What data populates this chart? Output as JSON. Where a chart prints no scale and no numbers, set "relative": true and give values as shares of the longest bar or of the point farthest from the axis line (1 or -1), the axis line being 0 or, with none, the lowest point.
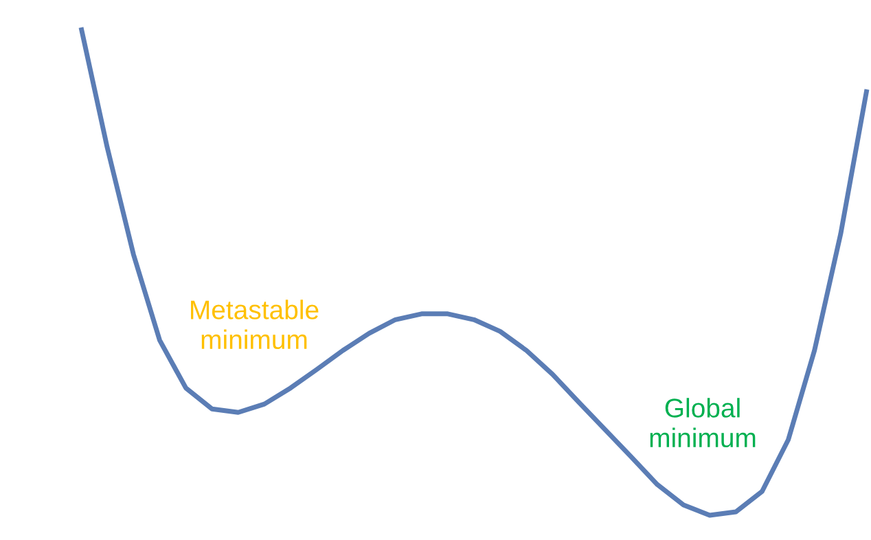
{
  "chart_data": {
    "type": "line",
    "relative": true,
    "categories": [
      null,
      null,
      null,
      null,
      null,
      null,
      null,
      null,
      null,
      null,
      null,
      null,
      null,
      null,
      null,
      null,
      null,
      null,
      null,
      null,
      null,
      null,
      null,
      null,
      null,
      null,
      null,
      null,
      null,
      null,
      null
    ],
    "series": [
      {
        "color": "#5b7db5",
        "values": [
          1.0,
          0.754,
          0.535,
          0.359,
          0.261,
          0.218,
          0.211,
          0.228,
          0.261,
          0.299,
          0.338,
          0.373,
          0.401,
          0.413,
          0.413,
          0.401,
          0.377,
          0.338,
          0.289,
          0.232,
          0.176,
          0.12,
          0.063,
          0.021,
          0.0,
          0.007,
          0.049,
          0.155,
          0.338,
          0.577,
          0.873
        ]
      }
    ],
    "annotations": [
      "Metastable\nminimum",
      "Global\nminimum"
    ],
    "marker": "none",
    "line_style": "solid"
  }
}
